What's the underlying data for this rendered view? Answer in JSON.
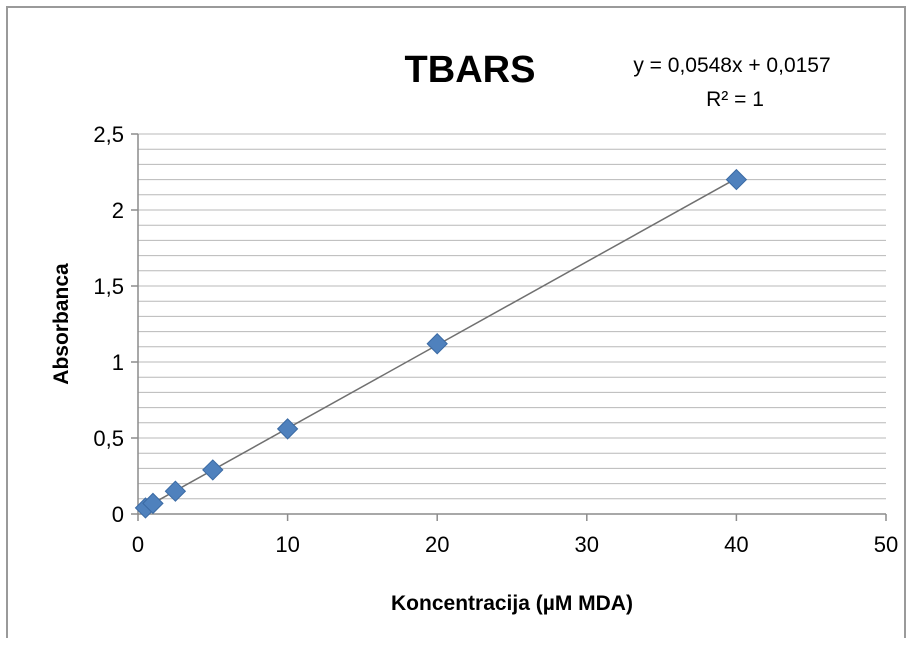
{
  "chart_data": {
    "type": "scatter",
    "title": "TBARS",
    "xlabel": "Koncentracija (µM MDA)",
    "ylabel": "Absorbanca",
    "xlim": [
      0,
      50
    ],
    "ylim": [
      0,
      2.5
    ],
    "x_ticks": [
      "0",
      "10",
      "20",
      "30",
      "40",
      "50"
    ],
    "y_ticks": [
      "0",
      "0,5",
      "1",
      "1,5",
      "2",
      "2,5"
    ],
    "grid": "horizontal-minor",
    "series": [
      {
        "color": "#4f81bd",
        "x": [
          0.5,
          1,
          2.5,
          5,
          10,
          20,
          40
        ],
        "y": [
          0.04,
          0.07,
          0.15,
          0.29,
          0.56,
          1.12,
          2.2
        ]
      }
    ],
    "trendline": {
      "slope": 0.0548,
      "intercept": 0.0157,
      "equation": "y = 0,0548x + 0,0157",
      "r2_label": "R² = 1",
      "color": "#707070"
    }
  }
}
